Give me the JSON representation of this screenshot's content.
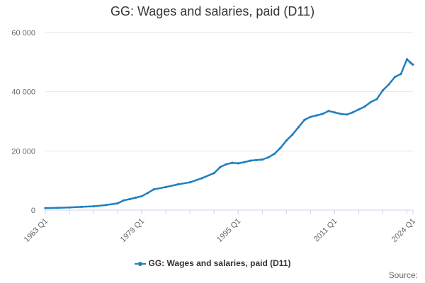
{
  "chart_data": {
    "type": "line",
    "title": "GG: Wages and salaries, paid (D11)",
    "xlabel": "",
    "ylabel": "",
    "ylim": [
      0,
      60000
    ],
    "yticks": [
      "0",
      "20 000",
      "40 000",
      "60 000"
    ],
    "xticks": [
      "1963 Q1",
      "1979 Q1",
      "1995 Q1",
      "2011 Q1",
      "2024 Q1"
    ],
    "grid": true,
    "legend_position": "bottom",
    "series": [
      {
        "name": "GG: Wages and salaries, paid (D11)",
        "color": "#1f80c1",
        "x": [
          "1963 Q1",
          "1965 Q1",
          "1967 Q1",
          "1969 Q1",
          "1971 Q1",
          "1973 Q1",
          "1975 Q1",
          "1976 Q1",
          "1977 Q1",
          "1978 Q1",
          "1979 Q1",
          "1980 Q1",
          "1981 Q1",
          "1983 Q1",
          "1985 Q1",
          "1987 Q1",
          "1989 Q1",
          "1991 Q1",
          "1992 Q1",
          "1993 Q1",
          "1994 Q1",
          "1995 Q1",
          "1996 Q1",
          "1997 Q1",
          "1998 Q1",
          "1999 Q1",
          "2000 Q1",
          "2001 Q1",
          "2002 Q1",
          "2003 Q1",
          "2004 Q1",
          "2005 Q1",
          "2006 Q1",
          "2007 Q1",
          "2008 Q1",
          "2009 Q1",
          "2010 Q1",
          "2011 Q1",
          "2012 Q1",
          "2013 Q1",
          "2014 Q1",
          "2015 Q1",
          "2016 Q1",
          "2017 Q1",
          "2018 Q1",
          "2019 Q1",
          "2020 Q1",
          "2021 Q1",
          "2022 Q1",
          "2023 Q1",
          "2023 Q3",
          "2023 Q4",
          "2024 Q1"
        ],
        "values": [
          700,
          800,
          900,
          1100,
          1300,
          1700,
          2300,
          3300,
          3700,
          4200,
          4700,
          5800,
          7000,
          7800,
          8700,
          9400,
          10800,
          12500,
          14500,
          15500,
          16000,
          15800,
          16200,
          16700,
          16900,
          17100,
          17800,
          19000,
          21000,
          23500,
          25500,
          28000,
          30500,
          31500,
          32000,
          32500,
          33500,
          33000,
          32500,
          32300,
          33000,
          34000,
          35000,
          36500,
          37500,
          40500,
          42500,
          45000,
          46000,
          51000,
          50000,
          49500,
          49200
        ]
      }
    ]
  },
  "source_label": "Source:"
}
